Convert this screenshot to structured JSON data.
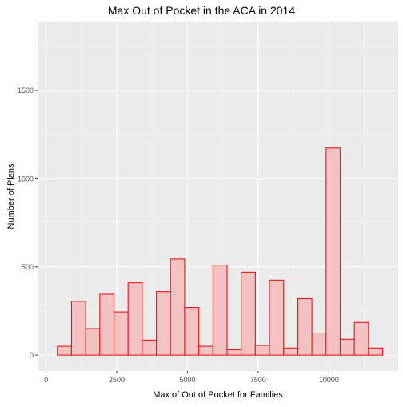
{
  "chart_data": {
    "type": "bar",
    "title": "Max Out of Pocket in the ACA in 2014",
    "xlabel": "Max of Out of Pocket for Families",
    "ylabel": "Number of Plans",
    "xlim": [
      -300,
      12450
    ],
    "ylim": [
      -90,
      1890
    ],
    "x_ticks": [
      0,
      2500,
      5000,
      7500,
      10000
    ],
    "y_ticks": [
      0,
      500,
      1000,
      1500
    ],
    "bin_width": 500,
    "bins": [
      {
        "start": 400,
        "end": 900,
        "count": 50
      },
      {
        "start": 900,
        "end": 1400,
        "count": 305
      },
      {
        "start": 1400,
        "end": 1900,
        "count": 150
      },
      {
        "start": 1900,
        "end": 2400,
        "count": 345
      },
      {
        "start": 2400,
        "end": 2900,
        "count": 245
      },
      {
        "start": 2900,
        "end": 3400,
        "count": 410
      },
      {
        "start": 3400,
        "end": 3900,
        "count": 85
      },
      {
        "start": 3900,
        "end": 4400,
        "count": 360
      },
      {
        "start": 4400,
        "end": 4900,
        "count": 545
      },
      {
        "start": 4900,
        "end": 5400,
        "count": 270
      },
      {
        "start": 5400,
        "end": 5900,
        "count": 50
      },
      {
        "start": 5900,
        "end": 6400,
        "count": 510
      },
      {
        "start": 6400,
        "end": 6900,
        "count": 30
      },
      {
        "start": 6900,
        "end": 7400,
        "count": 470
      },
      {
        "start": 7400,
        "end": 7900,
        "count": 55
      },
      {
        "start": 7900,
        "end": 8400,
        "count": 425
      },
      {
        "start": 8400,
        "end": 8900,
        "count": 40
      },
      {
        "start": 8900,
        "end": 9400,
        "count": 320
      },
      {
        "start": 9400,
        "end": 9900,
        "count": 125
      },
      {
        "start": 9900,
        "end": 10400,
        "count": 1175
      },
      {
        "start": 10400,
        "end": 10900,
        "count": 90
      },
      {
        "start": 10900,
        "end": 11400,
        "count": 185
      },
      {
        "start": 11400,
        "end": 11900,
        "count": 40
      }
    ],
    "colors": {
      "panel_bg": "#ebebeb",
      "grid_major": "#ffffff",
      "grid_minor": "#f5f5f5",
      "bar_fill": "#f4c2c2",
      "bar_stroke": "#e31a1c",
      "tick_text": "#4d4d4d"
    },
    "grid": true,
    "legend": "none"
  }
}
